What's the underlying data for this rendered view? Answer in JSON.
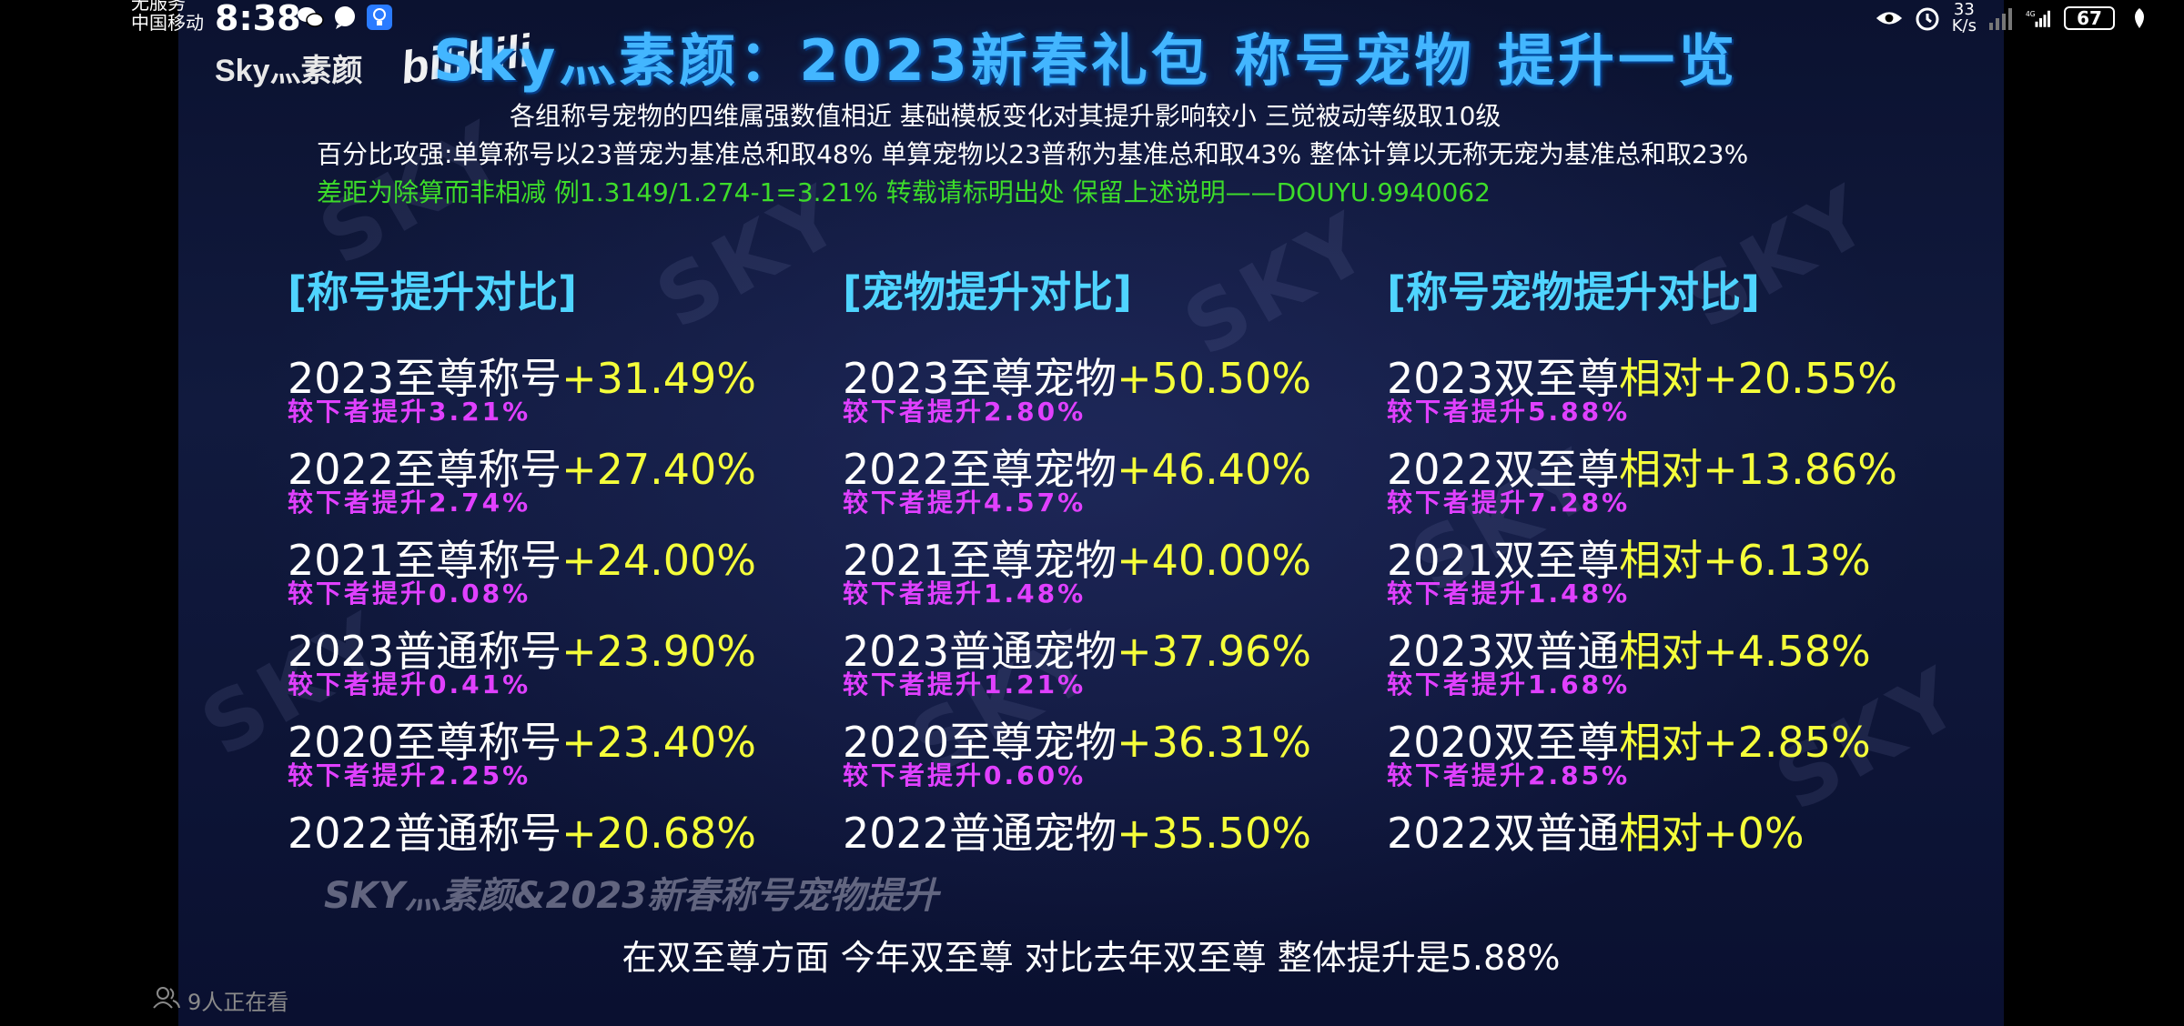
{
  "status_bar": {
    "carrier_line1": "无服务",
    "carrier_line2": "中国移动",
    "time": "8:38",
    "net_speed_value": "33",
    "net_speed_unit": "K/s",
    "battery": "67",
    "left_icons": [
      "wechat-icon",
      "message-icon",
      "bulb-icon"
    ],
    "right_icons": [
      "eye-icon",
      "alarm-icon",
      "signal-icon",
      "signal-4g-icon",
      "leaf-icon"
    ]
  },
  "video": {
    "logo": "Sky灬素颜",
    "bili_logo": "bilibili",
    "title": "Sky灬素颜：2023新春礼包 称号宠物 提升一览",
    "notes": [
      "各组称号宠物的四维属强数值相近 基础模板变化对其提升影响较小 三觉被动等级取10级",
      "百分比攻强:单算称号以23普宠为基准总和取48% 单算宠物以23普称为基准总和取43% 整体计算以无称无宠为基准总和取23%",
      "差距为除算而非相减 例1.3149/1.274-1=3.21% 转载请标明出处 保留上述说明——DOUYU.9940062"
    ],
    "columns": [
      {
        "heading": "[称号提升对比]",
        "entries": [
          {
            "name": "2023至尊称号",
            "value": "+31.49%",
            "sub": "较下者提升3.21%"
          },
          {
            "name": "2022至尊称号",
            "value": "+27.40%",
            "sub": "较下者提升2.74%"
          },
          {
            "name": "2021至尊称号",
            "value": "+24.00%",
            "sub": "较下者提升0.08%"
          },
          {
            "name": "2023普通称号",
            "value": "+23.90%",
            "sub": "较下者提升0.41%"
          },
          {
            "name": "2020至尊称号",
            "value": "+23.40%",
            "sub": "较下者提升2.25%"
          },
          {
            "name": "2022普通称号",
            "value": "+20.68%",
            "sub": ""
          }
        ]
      },
      {
        "heading": "[宠物提升对比]",
        "entries": [
          {
            "name": "2023至尊宠物",
            "value": "+50.50%",
            "sub": "较下者提升2.80%"
          },
          {
            "name": "2022至尊宠物",
            "value": "+46.40%",
            "sub": "较下者提升4.57%"
          },
          {
            "name": "2021至尊宠物",
            "value": "+40.00%",
            "sub": "较下者提升1.48%"
          },
          {
            "name": "2023普通宠物",
            "value": "+37.96%",
            "sub": "较下者提升1.21%"
          },
          {
            "name": "2020至尊宠物",
            "value": "+36.31%",
            "sub": "较下者提升0.60%"
          },
          {
            "name": "2022普通宠物",
            "value": "+35.50%",
            "sub": ""
          }
        ]
      },
      {
        "heading": "[称号宠物提升对比]",
        "entries": [
          {
            "name": "2023双至尊",
            "value": "相对+20.55%",
            "sub": "较下者提升5.88%"
          },
          {
            "name": "2022双至尊",
            "value": "相对+13.86%",
            "sub": "较下者提升7.28%"
          },
          {
            "name": "2021双至尊",
            "value": "相对+6.13%",
            "sub": "较下者提升1.48%"
          },
          {
            "name": "2023双普通",
            "value": "相对+4.58%",
            "sub": "较下者提升1.68%"
          },
          {
            "name": "2020双至尊",
            "value": "相对+2.85%",
            "sub": "较下者提升2.85%"
          },
          {
            "name": "2022双普通",
            "value": "相对+0%",
            "sub": ""
          }
        ]
      }
    ],
    "watermark_caption": "SKY灬素颜&2023新春称号宠物提升",
    "subtitle": "在双至尊方面 今年双至尊 对比去年双至尊 整体提升是5.88%"
  },
  "viewers": {
    "text": "9人正在看",
    "icon": "people-icon"
  }
}
